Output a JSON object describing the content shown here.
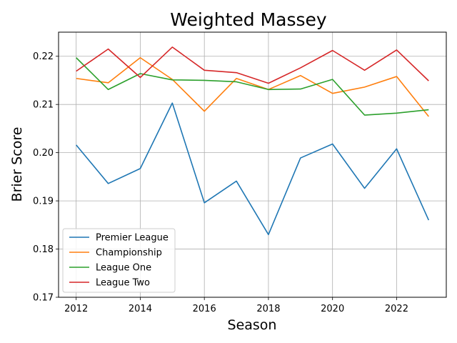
{
  "chart_data": {
    "type": "line",
    "title": "Weighted Massey",
    "xlabel": "Season",
    "ylabel": "Brier Score",
    "x": [
      2012,
      2013,
      2014,
      2015,
      2016,
      2017,
      2018,
      2019,
      2020,
      2021,
      2022,
      2023
    ],
    "xlim": [
      2011.45,
      2023.55
    ],
    "ylim": [
      0.17,
      0.225
    ],
    "xticks": [
      "2012",
      "2014",
      "2016",
      "2018",
      "2020",
      "2022"
    ],
    "yticks": [
      "0.17",
      "0.18",
      "0.19",
      "0.20",
      "0.21",
      "0.22"
    ],
    "grid": true,
    "legend_position": "lower-left",
    "series": [
      {
        "name": "Premier League",
        "color": "#1f77b4",
        "values": [
          0.2016,
          0.1936,
          0.1967,
          0.2103,
          0.1896,
          0.1941,
          0.183,
          0.1989,
          0.2018,
          0.1926,
          0.2008,
          0.186
        ]
      },
      {
        "name": "Championship",
        "color": "#ff7f0e",
        "values": [
          0.2154,
          0.2145,
          0.2197,
          0.2152,
          0.2086,
          0.2154,
          0.2131,
          0.216,
          0.2123,
          0.2136,
          0.2158,
          0.2075
        ]
      },
      {
        "name": "League One",
        "color": "#2ca02c",
        "values": [
          0.2197,
          0.2131,
          0.2164,
          0.2151,
          0.215,
          0.2147,
          0.2131,
          0.2132,
          0.2152,
          0.2078,
          0.2082,
          0.2089
        ]
      },
      {
        "name": "League Two",
        "color": "#d62728",
        "values": [
          0.2169,
          0.2215,
          0.2156,
          0.2219,
          0.2171,
          0.2166,
          0.2144,
          0.2176,
          0.2212,
          0.2171,
          0.2213,
          0.2149
        ]
      }
    ]
  }
}
